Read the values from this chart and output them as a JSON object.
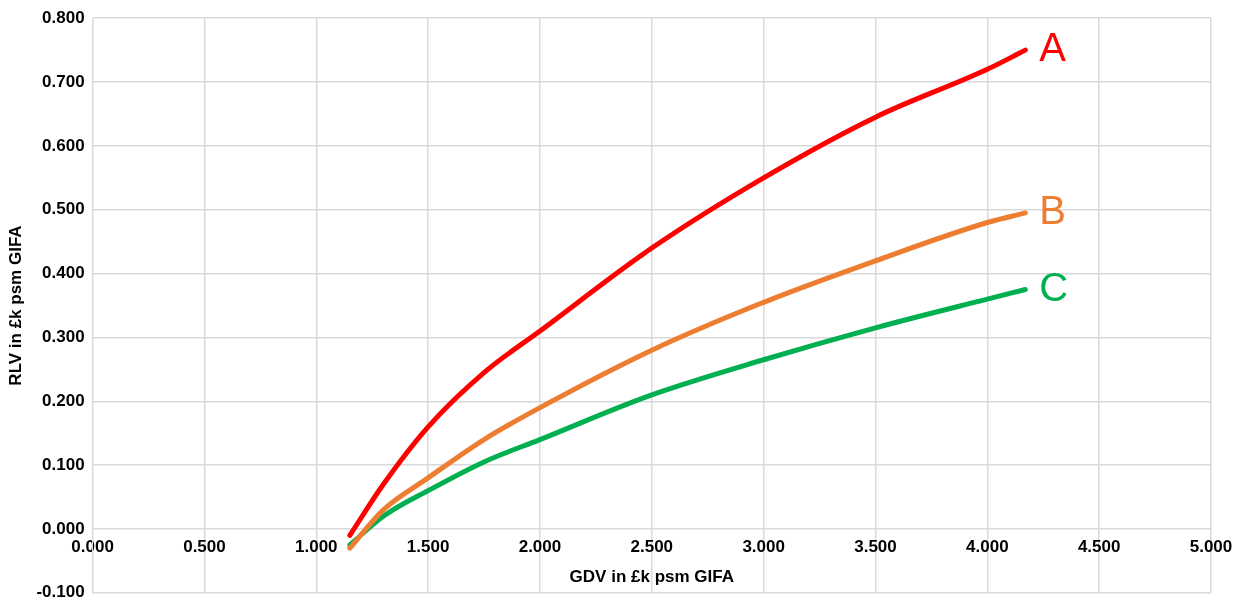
{
  "chart_data": {
    "type": "line",
    "xlabel": "GDV in £k psm GIFA",
    "ylabel": "RLV in £k psm GIFA",
    "xlim": [
      0,
      5
    ],
    "ylim": [
      -0.1,
      0.8
    ],
    "xticks": [
      {
        "value": 0,
        "label": "0.000"
      },
      {
        "value": 0.5,
        "label": "0.500"
      },
      {
        "value": 1,
        "label": "1.000"
      },
      {
        "value": 1.5,
        "label": "1.500"
      },
      {
        "value": 2,
        "label": "2.000"
      },
      {
        "value": 2.5,
        "label": "2.500"
      },
      {
        "value": 3,
        "label": "3.000"
      },
      {
        "value": 3.5,
        "label": "3.500"
      },
      {
        "value": 4,
        "label": "4.000"
      },
      {
        "value": 4.5,
        "label": "4.500"
      },
      {
        "value": 5,
        "label": "5.000"
      }
    ],
    "yticks": [
      {
        "value": -0.1,
        "label": "-0.100"
      },
      {
        "value": 0,
        "label": "0.000"
      },
      {
        "value": 0.1,
        "label": "0.100"
      },
      {
        "value": 0.2,
        "label": "0.200"
      },
      {
        "value": 0.3,
        "label": "0.300"
      },
      {
        "value": 0.4,
        "label": "0.400"
      },
      {
        "value": 0.5,
        "label": "0.500"
      },
      {
        "value": 0.6,
        "label": "0.600"
      },
      {
        "value": 0.7,
        "label": "0.700"
      },
      {
        "value": 0.8,
        "label": "0.800"
      }
    ],
    "grid": true,
    "marker": "none",
    "line_style": "solid",
    "legend": false,
    "x": [
      1.15,
      1.3,
      1.5,
      1.75,
      2.0,
      2.5,
      3.0,
      3.5,
      4.0,
      4.17
    ],
    "series": [
      {
        "name": "A",
        "color": "#ff0000",
        "values": [
          -0.01,
          0.07,
          0.16,
          0.245,
          0.31,
          0.44,
          0.55,
          0.645,
          0.72,
          0.75
        ]
      },
      {
        "name": "B",
        "color": "#ed7d31",
        "values": [
          -0.03,
          0.03,
          0.08,
          0.14,
          0.19,
          0.28,
          0.355,
          0.42,
          0.48,
          0.495
        ]
      },
      {
        "name": "C",
        "color": "#00b050",
        "values": [
          -0.025,
          0.02,
          0.06,
          0.105,
          0.14,
          0.21,
          0.265,
          0.315,
          0.36,
          0.375
        ]
      }
    ]
  }
}
